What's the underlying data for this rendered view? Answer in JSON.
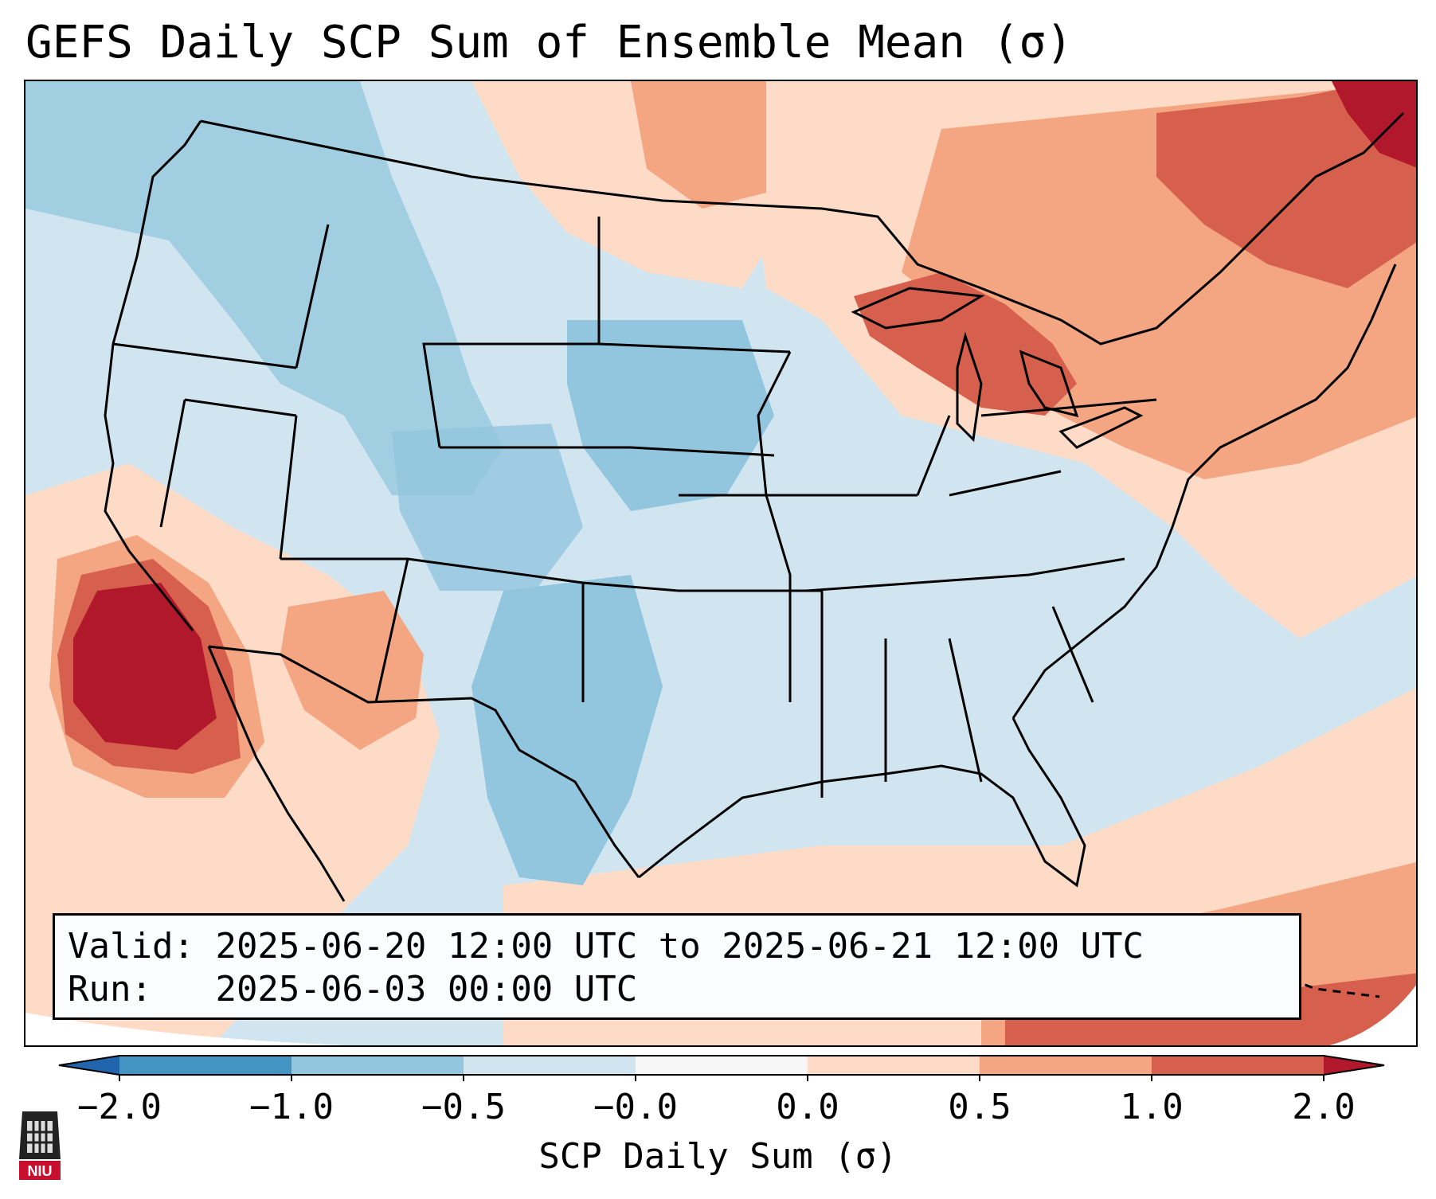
{
  "title": "GEFS Daily SCP Sum of Ensemble Mean (σ)",
  "info": {
    "valid_label": "Valid:",
    "valid_value": "2025-06-20 12:00 UTC to 2025-06-21 12:00 UTC",
    "run_label": "Run:",
    "run_value": "2025-06-03 00:00 UTC"
  },
  "colorbar": {
    "label": "SCP Daily Sum (σ)",
    "ticks": [
      "−2.0",
      "−1.0",
      "−0.5",
      "−0.0",
      "0.0",
      "0.5",
      "1.0",
      "2.0"
    ],
    "bin_colors": [
      "#4393c3",
      "#92c5de",
      "#d1e5f0",
      "#f7f7f7",
      "#fddbc7",
      "#f4a582",
      "#d6604d",
      "#b2182b"
    ],
    "under_color": "#2166ac",
    "over_color": "#b2182b"
  },
  "map": {
    "background_color": "#d1e5f0",
    "region": "Contiguous United States",
    "anomaly_regions": [
      {
        "area": "Northeast / New England",
        "category": "1.0 to 2.0"
      },
      {
        "area": "Great Lakes",
        "category": "1.0 to 2.0"
      },
      {
        "area": "Baja California / Gulf of California",
        "category": "1.0 to 2.0"
      },
      {
        "area": "Texas / southern Plains",
        "category": "-1.0 to -0.5"
      },
      {
        "area": "Northern Rockies / Plains",
        "category": "-1.0 to -0.5"
      },
      {
        "area": "Southeast / Gulf Coast",
        "category": "-0.5 to -0.0"
      }
    ]
  },
  "logo": {
    "text": "NIU"
  }
}
